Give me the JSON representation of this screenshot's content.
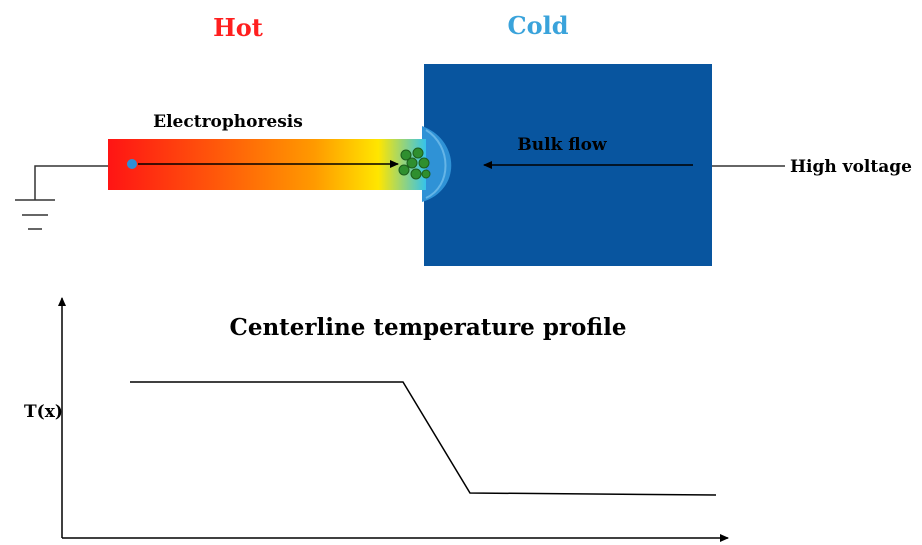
{
  "labels": {
    "hot": "Hot",
    "cold": "Cold",
    "electrophoresis": "Electrophoresis",
    "bulk_flow": "Bulk flow",
    "high_voltage": "High voltage",
    "profile_title": "Centerline temperature profile",
    "y_axis": "T(x)"
  },
  "colors": {
    "hot_label": "#ff1f1f",
    "cold_label": "#3aa3db",
    "reservoir": "#08559f",
    "meniscus": "#2f92d6",
    "particle": "#2f8f2f",
    "particle_dot": "#2f8fd6",
    "gradient": [
      "#ff1414",
      "#ff5a0a",
      "#ff9a00",
      "#ffe600",
      "#35c3ea"
    ]
  },
  "temperature_profile": {
    "levels": [
      "high",
      "low"
    ],
    "shape": "high plateau, linear drop at channel exit, low plateau"
  }
}
